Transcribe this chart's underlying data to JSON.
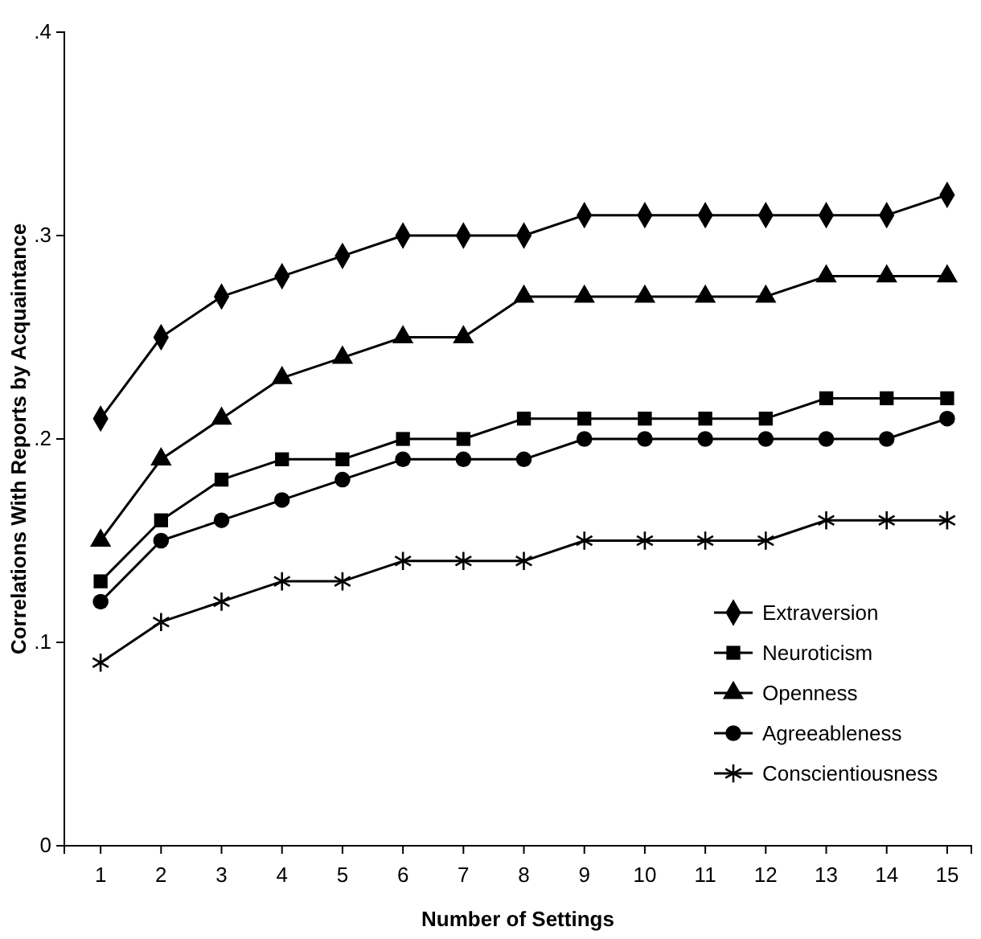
{
  "chart_data": {
    "type": "line",
    "xlabel": "Number of Settings",
    "ylabel": "Correlations With Reports by Acquaintance",
    "x": [
      1,
      2,
      3,
      4,
      5,
      6,
      7,
      8,
      9,
      10,
      11,
      12,
      13,
      14,
      15
    ],
    "xlim": [
      0.4,
      15.4
    ],
    "xticks": [
      1,
      2,
      3,
      4,
      5,
      6,
      7,
      8,
      9,
      10,
      11,
      12,
      13,
      14,
      15
    ],
    "ylim": [
      0,
      0.4
    ],
    "yticks": [
      {
        "value": 0,
        "label": "0"
      },
      {
        "value": 0.1,
        "label": ".1"
      },
      {
        "value": 0.2,
        "label": ".2"
      },
      {
        "value": 0.3,
        "label": ".3"
      },
      {
        "value": 0.4,
        "label": ".4"
      }
    ],
    "grid": false,
    "legend": "bottom right",
    "line_style": "solid",
    "series": [
      {
        "name": "Extraversion",
        "color": "#000000",
        "marker": "diamond",
        "values": [
          0.21,
          0.25,
          0.27,
          0.28,
          0.29,
          0.3,
          0.3,
          0.3,
          0.31,
          0.31,
          0.31,
          0.31,
          0.31,
          0.31,
          0.32
        ]
      },
      {
        "name": "Neuroticism",
        "color": "#000000",
        "marker": "square",
        "values": [
          0.13,
          0.16,
          0.18,
          0.19,
          0.19,
          0.2,
          0.2,
          0.21,
          0.21,
          0.21,
          0.21,
          0.21,
          0.22,
          0.22,
          0.22
        ]
      },
      {
        "name": "Openness",
        "color": "#000000",
        "marker": "triangle",
        "values": [
          0.15,
          0.19,
          0.21,
          0.23,
          0.24,
          0.25,
          0.25,
          0.27,
          0.27,
          0.27,
          0.27,
          0.27,
          0.28,
          0.28,
          0.28
        ]
      },
      {
        "name": "Agreeableness",
        "color": "#000000",
        "marker": "circle",
        "values": [
          0.12,
          0.15,
          0.16,
          0.17,
          0.18,
          0.19,
          0.19,
          0.19,
          0.2,
          0.2,
          0.2,
          0.2,
          0.2,
          0.2,
          0.21
        ]
      },
      {
        "name": "Conscientiousness",
        "color": "#000000",
        "marker": "cross",
        "values": [
          0.09,
          0.11,
          0.12,
          0.13,
          0.13,
          0.14,
          0.14,
          0.14,
          0.15,
          0.15,
          0.15,
          0.15,
          0.16,
          0.16,
          0.16
        ]
      }
    ]
  }
}
